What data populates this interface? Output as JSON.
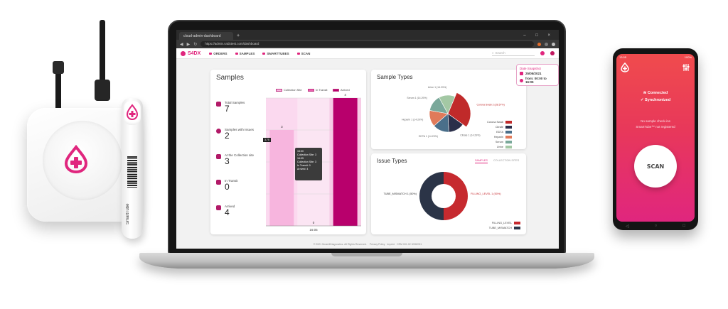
{
  "browser": {
    "tab_title": "cloud-admin-dashboard",
    "new_tab": "+",
    "url": "https://admin.s4dxtest.com/dashboard",
    "window_controls": "– □ ×"
  },
  "app": {
    "brand": "S4DX",
    "nav": [
      "ORDERS",
      "SAMPLES",
      "SMARTTUBES",
      "SCAN"
    ],
    "search_placeholder": "Search",
    "accent_color": "#e0267e"
  },
  "date_box": {
    "title": "Date Snapshot",
    "date": "25/05/2021",
    "time": "from: 00:00 to 16:05"
  },
  "samples_card": {
    "title": "Samples",
    "metrics": [
      {
        "label": "Total Samples",
        "value": "7"
      },
      {
        "label": "Samples with Issues",
        "value": "2"
      },
      {
        "label": "At the Collection site",
        "value": "3"
      },
      {
        "label": "In Transit",
        "value": "0"
      },
      {
        "label": "Arrived",
        "value": "4"
      }
    ],
    "legend": [
      "Collection Site",
      "In Transit",
      "Arrived"
    ],
    "tooltip": {
      "line1": "15:30",
      "line2": "Collection Site: 3",
      "line3": "16:05",
      "line4": "Collection Site: 3",
      "line5": "In Transit: 0",
      "line6": "Arrived: 4"
    },
    "y_marker": "3.75"
  },
  "chart_data": [
    {
      "type": "bar",
      "categories": [
        "16:05"
      ],
      "series": [
        {
          "name": "Collection Site",
          "values": [
            3
          ]
        },
        {
          "name": "In Transit",
          "values": [
            0
          ]
        },
        {
          "name": "Arrived",
          "values": [
            4
          ]
        }
      ],
      "data_labels": [
        "3",
        "0",
        "4"
      ],
      "ylim": [
        0,
        4
      ]
    },
    {
      "type": "pie",
      "title": "Sample Types",
      "categories": [
        "Corona Swab",
        "Citrate",
        "EDTA",
        "Heparin",
        "Serum",
        "Urine"
      ],
      "values": [
        28.57,
        14.29,
        14.29,
        14.29,
        14.29,
        14.29
      ],
      "slice_labels": [
        "Corona Swab 2 (28.57%)",
        "Citrate 1 (14.29%)",
        "EDTA 1 (14.29%)",
        "Heparin 1 (14.29%)",
        "Serum 1 (14.29%)",
        "Urine 1 (14.29%)"
      ],
      "colors": [
        "#c02a2a",
        "#2b2f4a",
        "#4a6f8a",
        "#e07a5a",
        "#7aa89a",
        "#a3c8a4"
      ]
    },
    {
      "type": "pie",
      "title": "Issue Types",
      "tabs": [
        "SAMPLES",
        "COLLECTION SITES"
      ],
      "categories": [
        "FILLING_LEVEL",
        "TUBE_MISMATCH"
      ],
      "values": [
        1,
        1
      ],
      "slice_labels": [
        "FILLING_LEVEL 1 (50%)",
        "TUBE_MISMATCH 1 (50%)"
      ],
      "colors": [
        "#c62a2f",
        "#2b3447"
      ]
    }
  ],
  "footer": {
    "copyright": "© 2021 Smart4Diagnostics. All Rights Reserved.",
    "links": [
      "Privacy Policy",
      "Imprint",
      "CRM 001.02 0005/001"
    ]
  },
  "phone": {
    "time": "13:05",
    "status_right": "100%",
    "connected": "Connected",
    "synchronized": "Synchronized",
    "hint1": "No sample check-ins",
    "hint2": "SmartTube™ not registered",
    "scan": "SCAN"
  },
  "devices": {
    "tube_label": "SmartTube"
  }
}
